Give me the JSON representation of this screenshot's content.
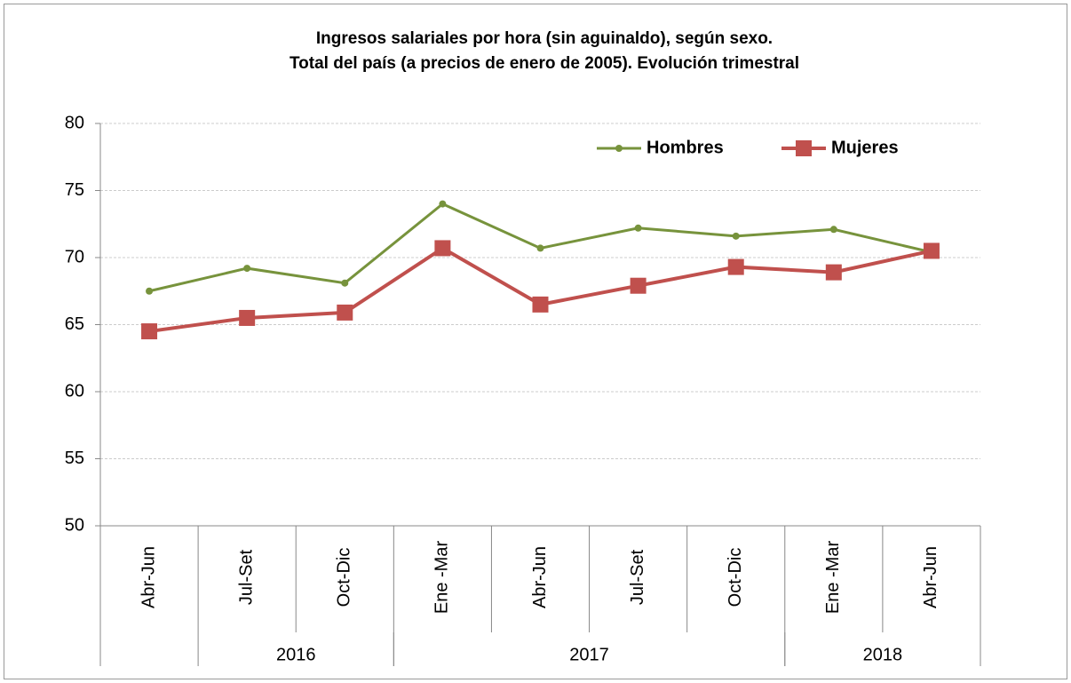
{
  "chart_data": {
    "type": "line",
    "title": [
      "Ingresos salariales por hora (sin aguinaldo), según sexo.",
      "Total del país (a precios de enero de 2005). Evolución trimestral"
    ],
    "categories": [
      "Abr-Jun",
      "Jul-Set",
      "Oct-Dic",
      "Ene -Mar",
      "Abr-Jun",
      "Jul-Set",
      "Oct-Dic",
      "Ene -Mar",
      "Abr-Jun"
    ],
    "years": [
      "2016",
      "2017",
      "2018"
    ],
    "series": [
      {
        "name": "Hombres",
        "color": "#77933c",
        "marker": "circle",
        "values": [
          67.5,
          69.2,
          68.1,
          74.0,
          70.7,
          72.2,
          71.6,
          72.1,
          70.4
        ]
      },
      {
        "name": "Mujeres",
        "color": "#c0504d",
        "marker": "square",
        "values": [
          64.5,
          65.5,
          65.9,
          70.7,
          66.5,
          67.9,
          69.3,
          68.9,
          70.5
        ]
      }
    ],
    "ylim": [
      50,
      80
    ],
    "yticks": [
      50,
      55,
      60,
      65,
      70,
      75,
      80
    ],
    "grid": true,
    "legend": "top-right"
  }
}
